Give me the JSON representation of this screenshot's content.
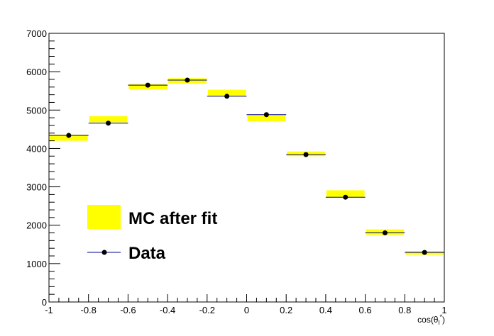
{
  "chart_data": {
    "type": "histogram",
    "xlabel": "cos(θ",
    "xlabel_sub": "l",
    "xlabel_sup": "*",
    "xlabel_end": ")",
    "xlim": [
      -1,
      1
    ],
    "ylim": [
      0,
      7000
    ],
    "x_ticks": [
      -1,
      -0.8,
      -0.6,
      -0.4,
      -0.2,
      0,
      0.2,
      0.4,
      0.6,
      0.8,
      1
    ],
    "x_tick_labels": [
      "-1",
      "-0.8",
      "-0.6",
      "-0.4",
      "-0.2",
      "0",
      "0.2",
      "0.4",
      "0.6",
      "0.8",
      "1"
    ],
    "y_ticks": [
      0,
      1000,
      2000,
      3000,
      4000,
      5000,
      6000,
      7000
    ],
    "y_tick_labels": [
      "0",
      "1000",
      "2000",
      "3000",
      "4000",
      "5000",
      "6000",
      "7000"
    ],
    "grid": false,
    "legend_position": "lower-left",
    "bin_edges": [
      -1,
      -0.8,
      -0.6,
      -0.4,
      -0.2,
      0,
      0.2,
      0.4,
      0.6,
      0.8,
      1
    ],
    "series": [
      {
        "name": "MC after fit",
        "style": "band",
        "color": "#ffff00",
        "values": [
          4280,
          4760,
          5610,
          5760,
          5450,
          4790,
          3860,
          2820,
          1820,
          1280
        ],
        "err": [
          80,
          80,
          70,
          70,
          80,
          80,
          60,
          90,
          70,
          50
        ]
      },
      {
        "name": "Data",
        "style": "points",
        "color": "#000000",
        "line_color": "#00008b",
        "values": [
          4340,
          4660,
          5650,
          5780,
          5360,
          4880,
          3840,
          2730,
          1800,
          1290
        ]
      }
    ]
  }
}
